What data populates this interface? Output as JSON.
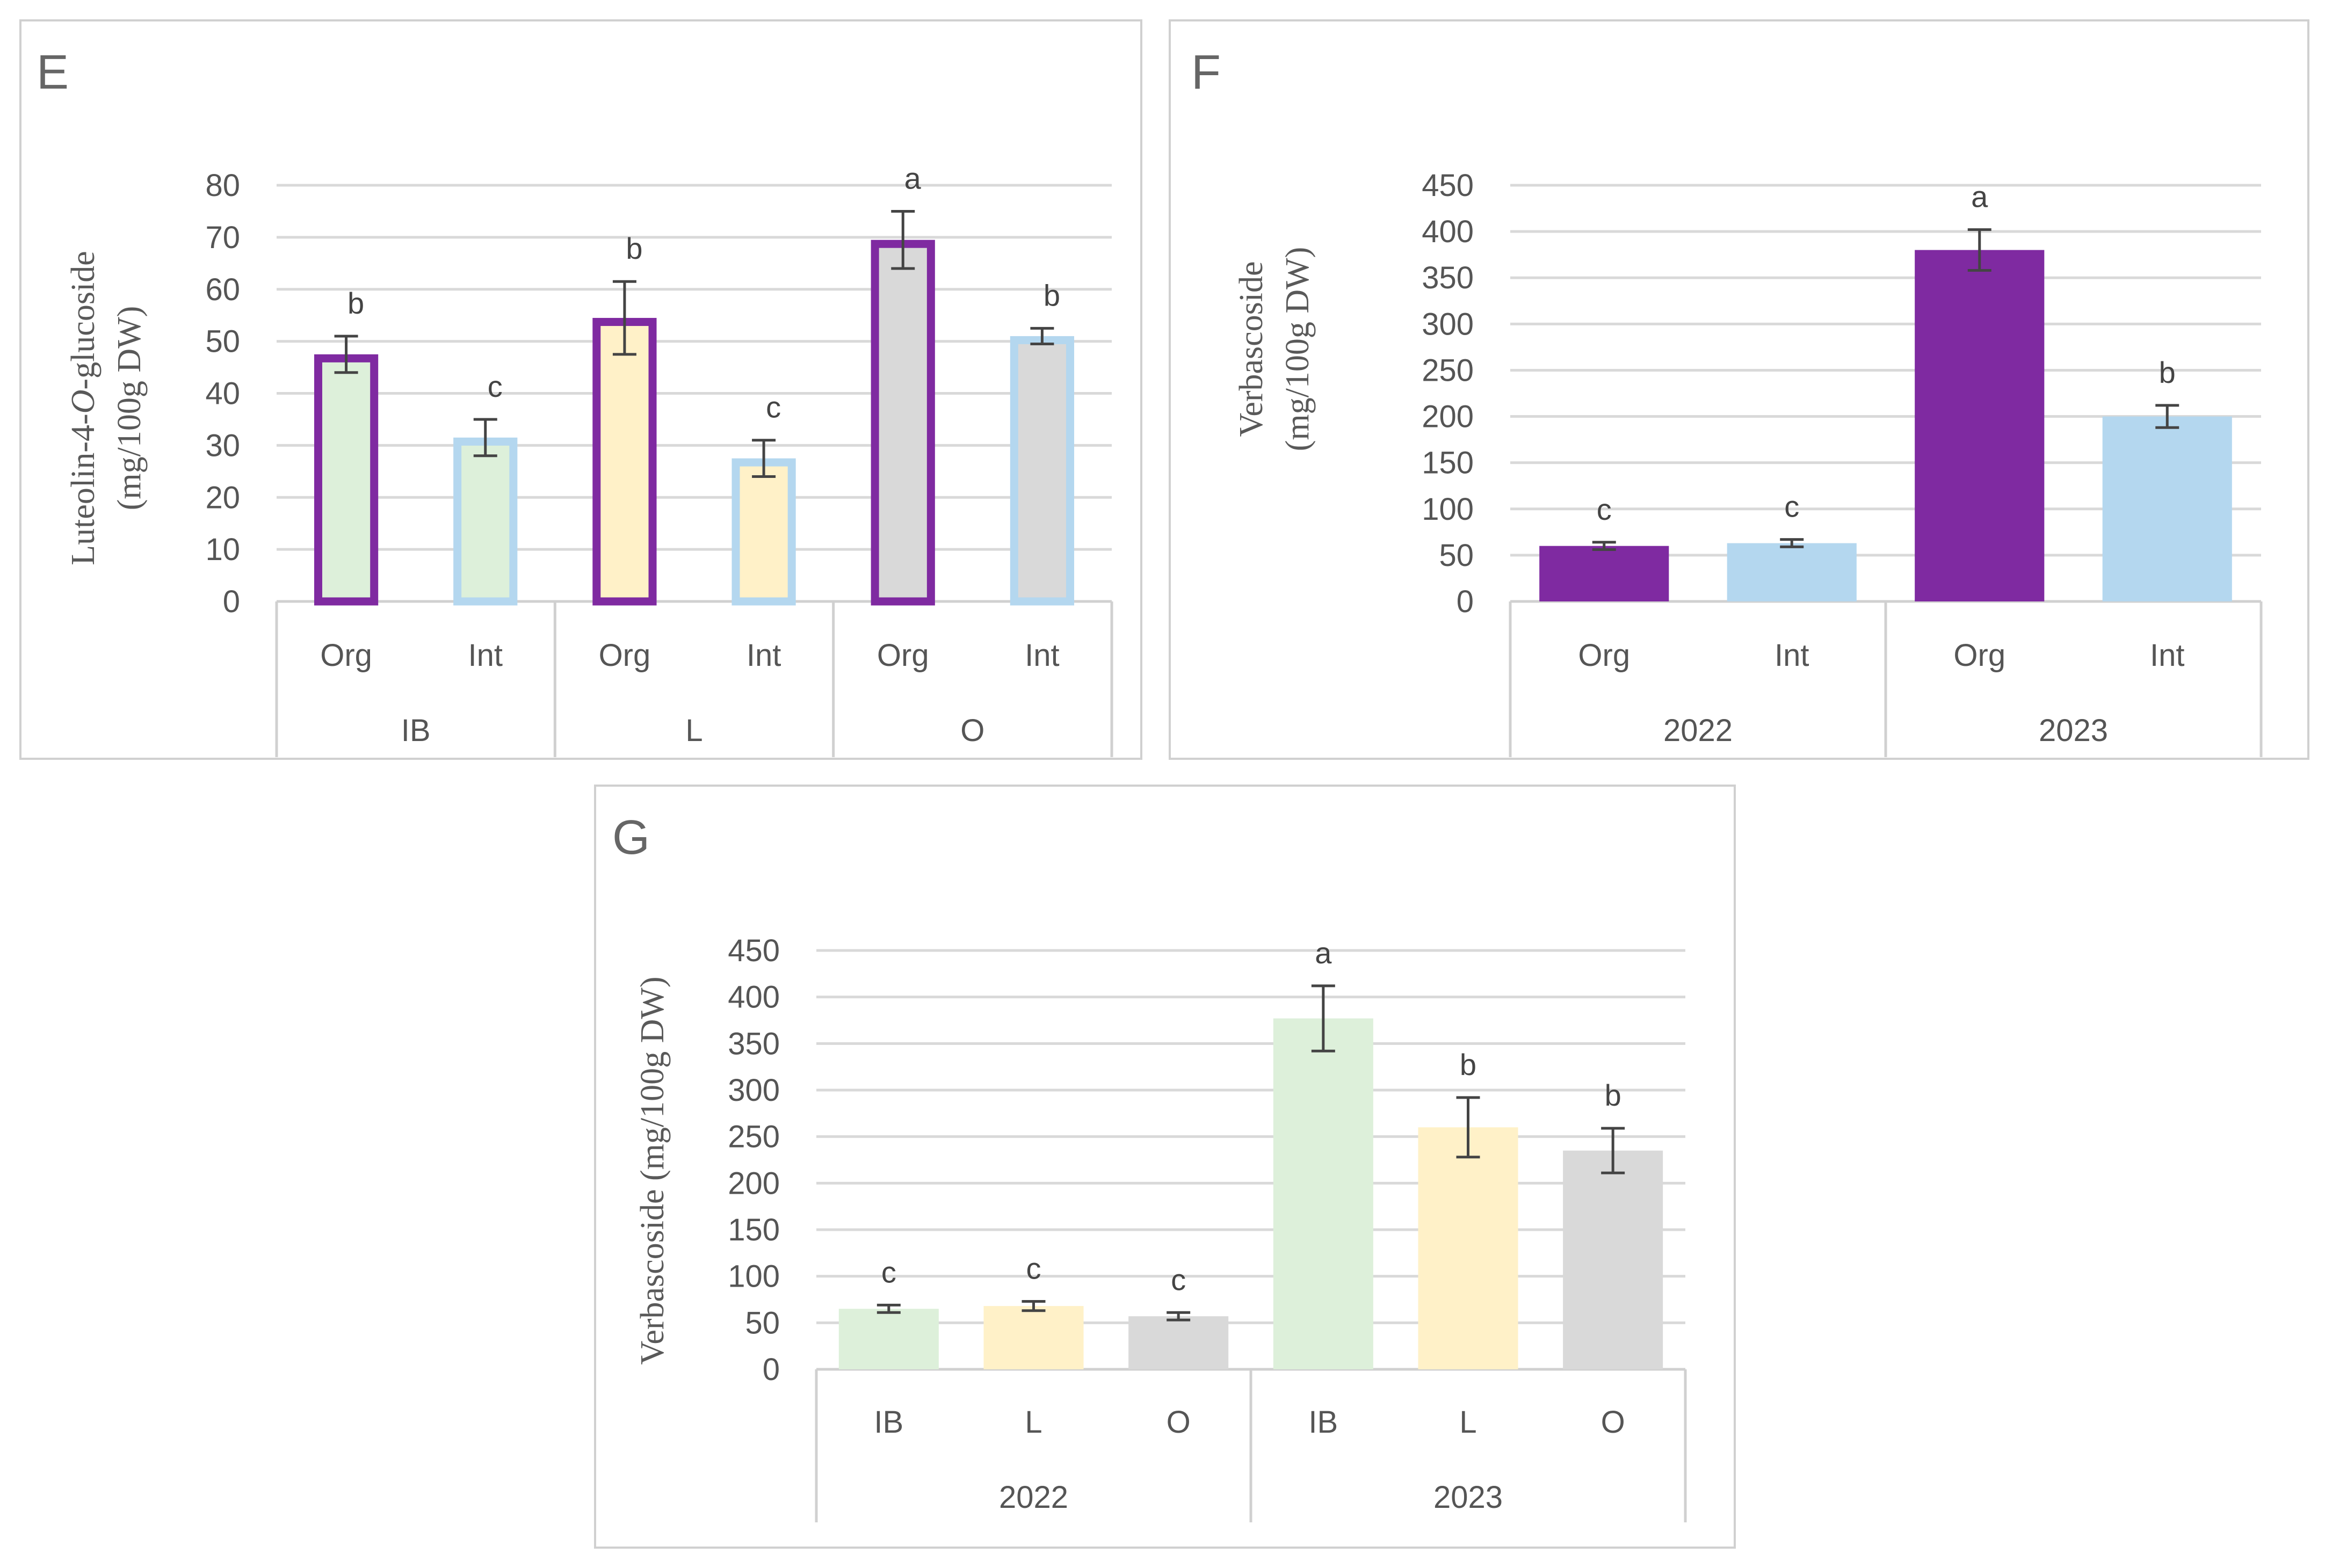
{
  "colors": {
    "org": "#7f2aa1",
    "int": "#b4d7ef",
    "ib": "#ddf0da",
    "l": "#fff1c8",
    "o": "#d9d9d9",
    "grid": "#d9d9d9",
    "errorbar": "#444444"
  },
  "chart_data": [
    {
      "id": "E",
      "panel_label": "E",
      "type": "bar",
      "ylabel_lines": [
        [
          "Luteolin-4-",
          "O",
          "-glucoside"
        ],
        [
          "(mg/100g DW)"
        ]
      ],
      "ylim": [
        0,
        80
      ],
      "yticks": [
        0,
        10,
        20,
        30,
        40,
        50,
        60,
        70,
        80
      ],
      "grid": true,
      "groups": [
        "IB",
        "L",
        "O"
      ],
      "categories": [
        "Org",
        "Int",
        "Org",
        "Int",
        "Org",
        "Int"
      ],
      "values": [
        47.5,
        31.5,
        54.5,
        27.5,
        69.5,
        51.0
      ],
      "errors": [
        3.5,
        3.5,
        7.0,
        3.5,
        5.5,
        1.5
      ],
      "letters": [
        "b",
        "c",
        "b",
        "c",
        "a",
        "b"
      ],
      "fills": [
        "ib",
        "ib",
        "l",
        "l",
        "o",
        "o"
      ],
      "outlines": [
        "org",
        "int",
        "org",
        "int",
        "org",
        "int"
      ]
    },
    {
      "id": "F",
      "panel_label": "F",
      "type": "bar",
      "ylabel_lines": [
        [
          "Verbascoside"
        ],
        [
          "(mg/100g DW)"
        ]
      ],
      "ylim": [
        0,
        450
      ],
      "yticks": [
        0,
        50,
        100,
        150,
        200,
        250,
        300,
        350,
        400,
        450
      ],
      "grid": true,
      "groups": [
        "2022",
        "2023"
      ],
      "categories": [
        "Org",
        "Int",
        "Org",
        "Int"
      ],
      "values": [
        60,
        63,
        380,
        200
      ],
      "errors": [
        4,
        4,
        22,
        12
      ],
      "letters": [
        "c",
        "c",
        "a",
        "b"
      ],
      "fills": [
        "org",
        "int",
        "org",
        "int"
      ]
    },
    {
      "id": "G",
      "panel_label": "G",
      "type": "bar",
      "ylabel_lines": [
        [
          "Verbascoside (mg/100g DW)"
        ]
      ],
      "ylim": [
        0,
        450
      ],
      "yticks": [
        0,
        50,
        100,
        150,
        200,
        250,
        300,
        350,
        400,
        450
      ],
      "grid": true,
      "groups": [
        "2022",
        "2023"
      ],
      "categories": [
        "IB",
        "L",
        "O",
        "IB",
        "L",
        "O"
      ],
      "values": [
        65,
        68,
        57,
        377,
        260,
        235
      ],
      "errors": [
        4,
        5,
        4,
        35,
        32,
        24
      ],
      "letters": [
        "c",
        "c",
        "c",
        "a",
        "b",
        "b"
      ],
      "fills": [
        "ib",
        "l",
        "o",
        "ib",
        "l",
        "o"
      ]
    }
  ]
}
